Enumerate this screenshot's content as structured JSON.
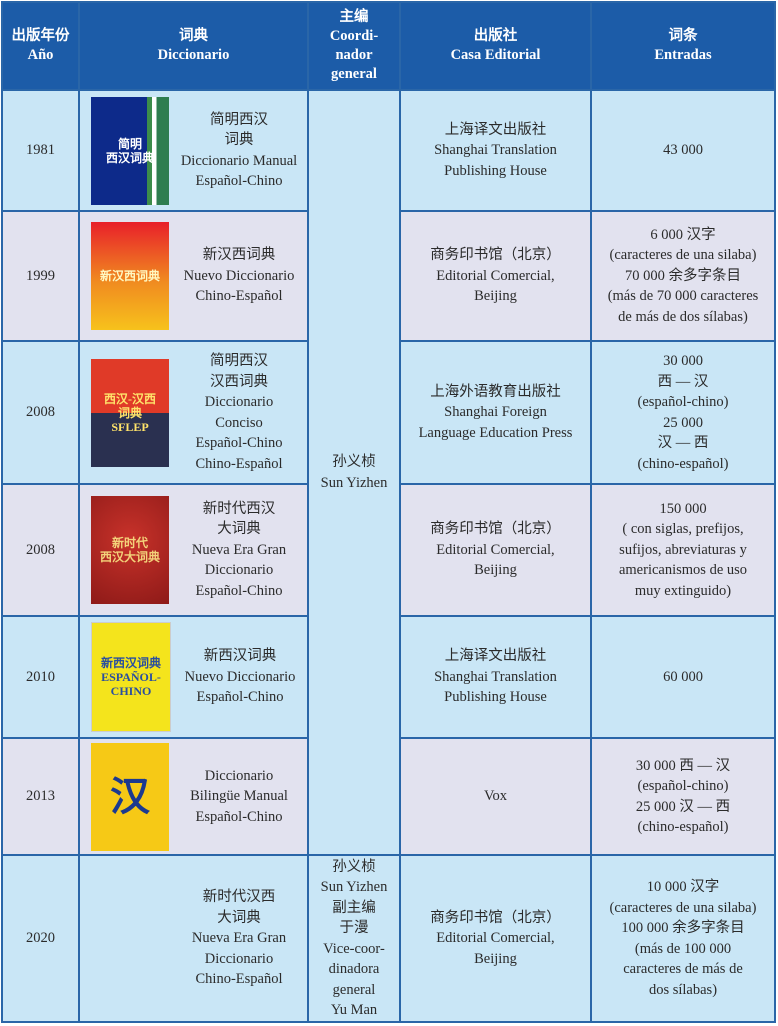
{
  "header": {
    "year": "出版年份\nAño",
    "dictionary": "词典\nDiccionario",
    "coordinator": "主编\nCoordi-\nnador\ngeneral",
    "publisher": "出版社\nCasa Editorial",
    "entries": "词条\nEntradas"
  },
  "coordinator_main": "孙义桢\nSun Yizhen",
  "rows": [
    {
      "year": "1981",
      "cover": "简明\n西汉词典",
      "name": "简明西汉\n词典\nDiccionario Manual\nEspañol-Chino",
      "publisher": "上海译文出版社\nShanghai Translation\nPublishing House",
      "entries": "43 000"
    },
    {
      "year": "1999",
      "cover": "新汉西词典",
      "name": "新汉西词典\nNuevo Diccionario\nChino-Español",
      "publisher": "商务印书馆（北京）\nEditorial Comercial,\nBeijing",
      "entries": "6 000 汉字\n(caracteres de una silaba)\n70 000 余多字条目\n(más de 70 000 caracteres\nde más de dos sílabas)"
    },
    {
      "year": "2008",
      "cover": "西汉-汉西\n词典\nSFLEP",
      "name": "简明西汉\n汉西词典\nDiccionario\nConciso\nEspañol-Chino\nChino-Español",
      "publisher": "上海外语教育出版社\nShanghai Foreign\nLanguage Education Press",
      "entries": "30 000\n西 — 汉\n(español-chino)\n25 000\n汉 — 西\n(chino-español)"
    },
    {
      "year": "2008",
      "cover": "新时代\n西汉大词典",
      "name": "新时代西汉\n大词典\nNueva Era Gran\nDiccionario\nEspañol-Chino",
      "publisher": "商务印书馆（北京）\nEditorial Comercial,\nBeijing",
      "entries": "150 000\n( con siglas, prefijos,\nsufijos, abreviaturas y\namericanismos de uso\nmuy extinguido)"
    },
    {
      "year": "2010",
      "cover": "新西汉词典\nESPAÑOL-\nCHINO",
      "name": "新西汉词典\nNuevo Diccionario\nEspañol-Chino",
      "publisher": "上海译文出版社\nShanghai Translation\nPublishing House",
      "entries": "60 000"
    },
    {
      "year": "2013",
      "cover": "汉",
      "name": "Diccionario\nBilingüe Manual\nEspañol-Chino",
      "publisher": "Vox",
      "entries": "30 000 西 — 汉\n(español-chino)\n25 000 汉 — 西\n(chino-español)"
    },
    {
      "year": "2020",
      "coordinator": "孙义桢\nSun Yizhen\n副主编\n于漫\nVice-coor-\ndinadora\ngeneral\nYu Man",
      "name": "新时代汉西\n大词典\nNueva Era Gran\nDiccionario\nChino-Español",
      "publisher": "商务印书馆（北京）\nEditorial Comercial,\nBeijing",
      "entries": "10 000 汉字\n(caracteres de una silaba)\n100 000 余多字条目\n(más de 100 000\ncaracteres de más de\ndos sílabas)"
    }
  ]
}
